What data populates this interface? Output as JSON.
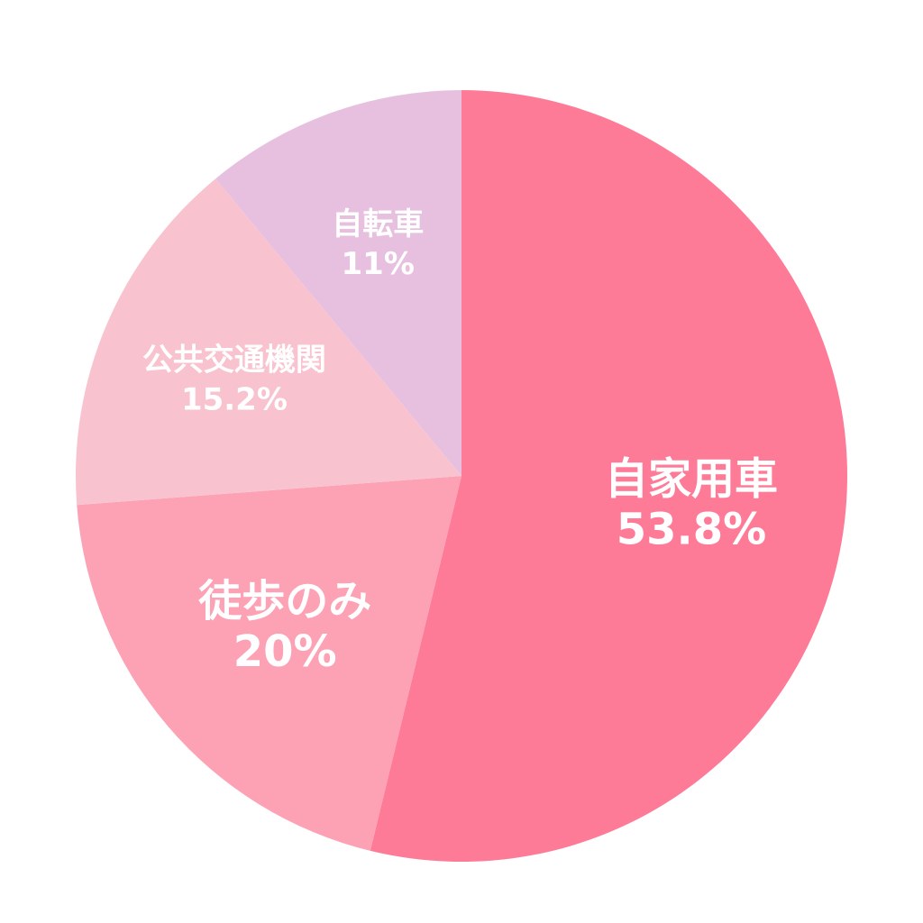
{
  "chart_data": {
    "type": "pie",
    "title": "",
    "start_angle_deg": 0,
    "direction": "clockwise",
    "slices": [
      {
        "label": "自家用車",
        "value": 53.8,
        "value_label": "53.8%",
        "color": "#fe7b97",
        "label_size": "large"
      },
      {
        "label": "徒歩のみ",
        "value": 20,
        "value_label": "20%",
        "color": "#fda1b5",
        "label_size": "large"
      },
      {
        "label": "公共交通機関",
        "value": 15.2,
        "value_label": "15.2%",
        "color": "#f8c3ce",
        "label_size": "small"
      },
      {
        "label": "自転車",
        "value": 11,
        "value_label": "11%",
        "color": "#e7c0df",
        "label_size": "small"
      }
    ]
  }
}
